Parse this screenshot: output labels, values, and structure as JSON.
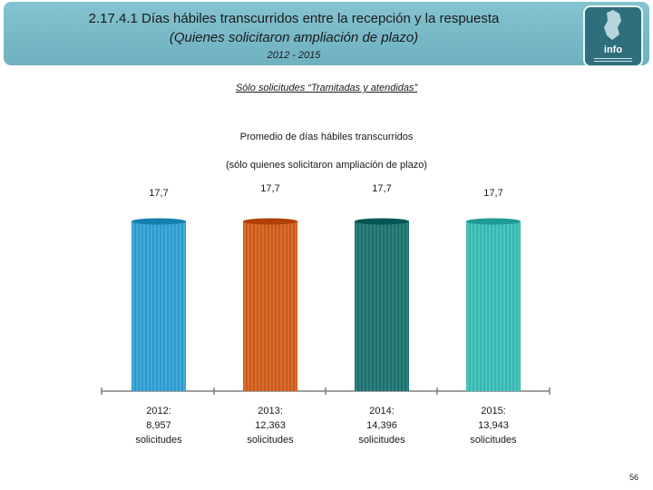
{
  "header": {
    "title": "2.17.4.1 Días hábiles transcurridos entre la recepción y la respuesta",
    "subtitle": "(Quienes solicitaron ampliación de plazo)",
    "period": "2012 - 2015",
    "logo_text": "info"
  },
  "filter_note": "Sólo solicitudes “Tramitadas y atendidas”",
  "chart_data": {
    "type": "bar",
    "title": "Promedio de días hábiles transcurridos",
    "subtitle": "(sólo quienes solicitaron ampliación de plazo)",
    "categories": [
      "2012:",
      "2013:",
      "2014:",
      "2015:"
    ],
    "category_details": [
      [
        "8,957",
        "solicitudes"
      ],
      [
        "12,363",
        "solicitudes"
      ],
      [
        "14,396",
        "solicitudes"
      ],
      [
        "13,943",
        "solicitudes"
      ]
    ],
    "values": [
      17.7,
      17.7,
      17.7,
      17.7
    ],
    "value_labels": [
      "17,7",
      "17,7",
      "17,7",
      "17,7"
    ],
    "colors": [
      "#2e98c9",
      "#c95a1e",
      "#1c6f6d",
      "#38b3ad"
    ],
    "ylim": [
      0,
      20
    ]
  },
  "footer": {
    "page_number": "56"
  }
}
